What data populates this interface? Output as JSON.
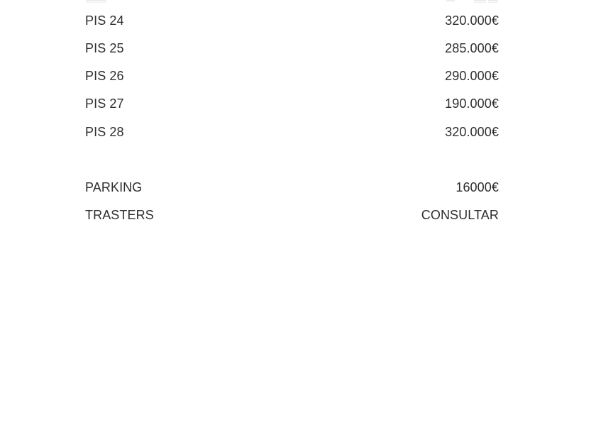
{
  "page": {
    "background_color": "#ffffff",
    "text_color": "#2e2e2e"
  },
  "price_list": {
    "units": [
      {
        "label": "PIS 24",
        "value": "320.000€"
      },
      {
        "label": "PIS 25",
        "value": "285.000€"
      },
      {
        "label": "PIS 26",
        "value": "290.000€"
      },
      {
        "label": "PIS 27",
        "value": "190.000€"
      },
      {
        "label": "PIS 28",
        "value": "320.000€"
      }
    ],
    "extras": [
      {
        "label": "PARKING",
        "value": "16000€"
      },
      {
        "label": "TRASTERS",
        "value": "CONSULTAR"
      }
    ]
  }
}
